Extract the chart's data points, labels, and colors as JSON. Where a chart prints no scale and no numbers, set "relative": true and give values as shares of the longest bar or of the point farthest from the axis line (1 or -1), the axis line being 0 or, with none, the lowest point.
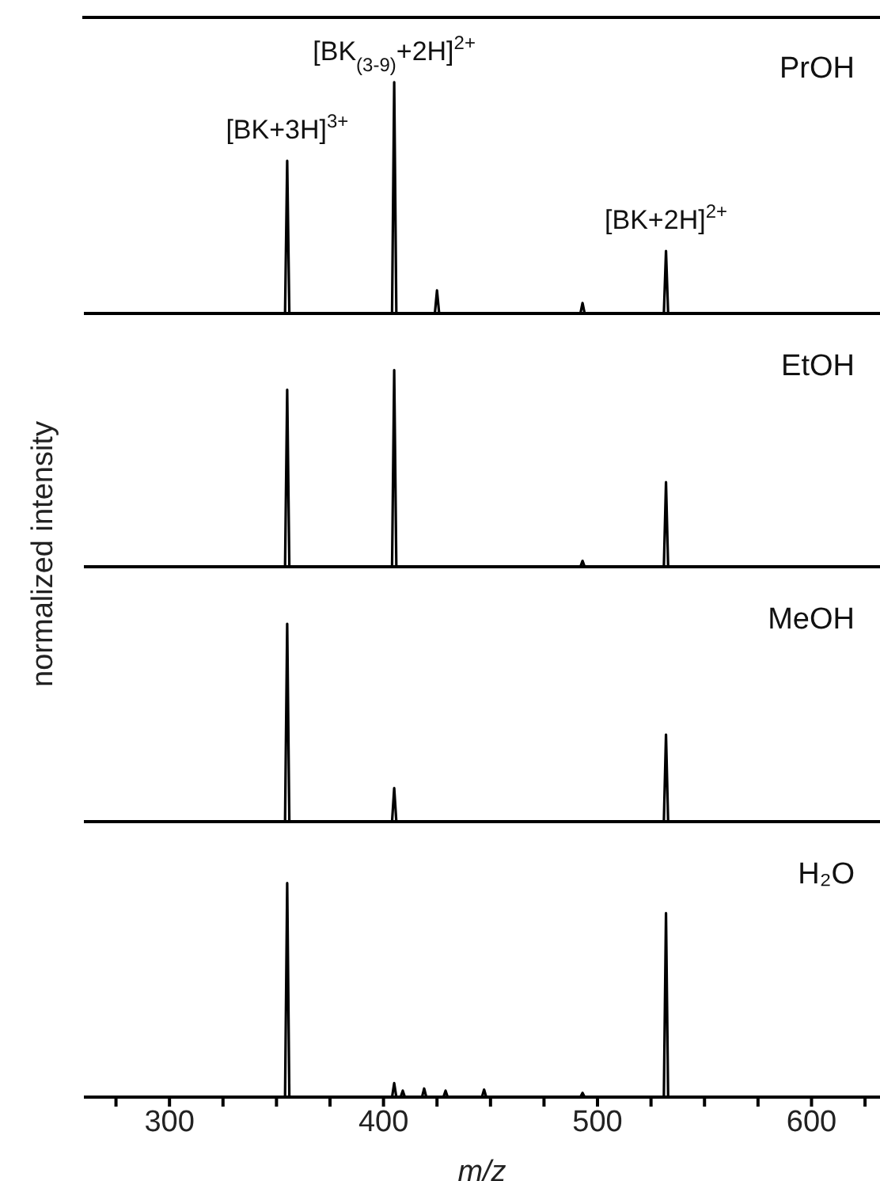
{
  "chart_data": [
    {
      "type": "line",
      "title": "PrOH",
      "relative": true,
      "xlim": [
        260,
        632
      ],
      "tick_labels": false,
      "marker": "none",
      "line_style": "solid",
      "x": [
        260,
        354,
        355,
        356,
        404,
        405,
        406,
        424,
        425,
        426,
        492,
        493,
        494,
        531,
        532,
        533,
        632
      ],
      "series": [
        {
          "color": "#000000",
          "values": [
            0,
            0,
            0.66,
            0,
            0,
            1,
            0,
            0,
            0.1,
            0,
            0,
            0.045,
            0,
            0,
            0.27,
            0,
            0
          ]
        }
      ],
      "annotations": [
        {
          "text": "[BK+3H]$^{3+}$",
          "x": 355,
          "y": 0.66
        },
        {
          "text": "[BK$_{(3-9)}$+2H]$^{2+}$",
          "x": 405,
          "y": 1
        },
        {
          "text": "[BK+2H]$^{2+}$",
          "x": 532,
          "y": 0.27
        }
      ]
    },
    {
      "type": "line",
      "title": "EtOH",
      "relative": true,
      "xlim": [
        260,
        632
      ],
      "tick_labels": false,
      "marker": "none",
      "line_style": "solid",
      "x": [
        260,
        354,
        355,
        356,
        404,
        405,
        406,
        492,
        493,
        494,
        531,
        532,
        533,
        632
      ],
      "series": [
        {
          "color": "#000000",
          "values": [
            0,
            0,
            0.9,
            0,
            0,
            1,
            0,
            0,
            0.03,
            0,
            0,
            0.43,
            0,
            0
          ]
        }
      ]
    },
    {
      "type": "line",
      "title": "MeOH",
      "relative": true,
      "xlim": [
        260,
        632
      ],
      "tick_labels": false,
      "marker": "none",
      "line_style": "solid",
      "x": [
        260,
        354,
        355,
        356,
        404,
        405,
        406,
        531,
        532,
        533,
        632
      ],
      "series": [
        {
          "color": "#000000",
          "values": [
            0,
            0,
            1,
            0,
            0,
            0.17,
            0,
            0,
            0.44,
            0,
            0
          ]
        }
      ]
    },
    {
      "type": "line",
      "title": "H₂O",
      "relative": true,
      "xlim": [
        260,
        632
      ],
      "tick_labels": "x",
      "marker": "none",
      "line_style": "solid",
      "xlabel": "m/z",
      "ylabel": "normalized intensity",
      "xticks": [
        {
          "value": 275,
          "label": null
        },
        300,
        {
          "value": 325,
          "label": null
        },
        {
          "value": 350,
          "label": null
        },
        {
          "value": 375,
          "label": null
        },
        400,
        {
          "value": 425,
          "label": null
        },
        {
          "value": 450,
          "label": null
        },
        {
          "value": 475,
          "label": null
        },
        500,
        {
          "value": 525,
          "label": null
        },
        {
          "value": 550,
          "label": null
        },
        {
          "value": 575,
          "label": null
        },
        600,
        {
          "value": 625,
          "label": null
        }
      ],
      "x": [
        260,
        354,
        355,
        356,
        404,
        405,
        406,
        408,
        409,
        410,
        418,
        419,
        420,
        428,
        429,
        430,
        446,
        447,
        448,
        492,
        493,
        494,
        531,
        532,
        533,
        632
      ],
      "series": [
        {
          "color": "#000000",
          "values": [
            0,
            0,
            1,
            0,
            0,
            0.065,
            0,
            0,
            0.03,
            0,
            0,
            0.04,
            0,
            0,
            0.03,
            0,
            0,
            0.035,
            0,
            0,
            0.02,
            0,
            0,
            0.86,
            0,
            0
          ]
        }
      ]
    }
  ]
}
